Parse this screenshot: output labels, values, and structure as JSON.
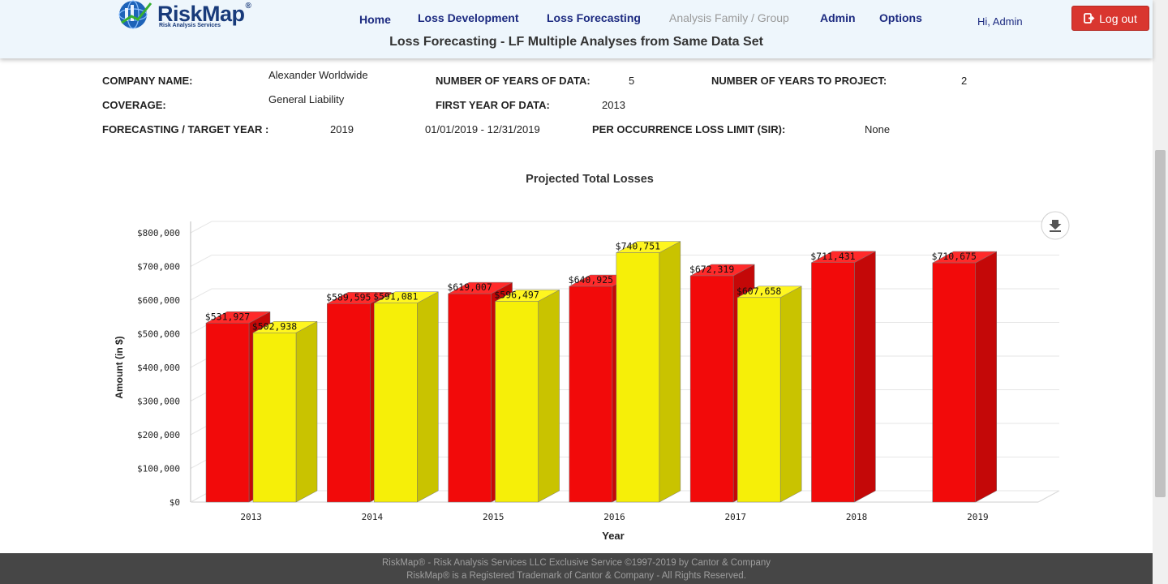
{
  "header": {
    "logo_text": "RiskMap",
    "logo_reg": "®",
    "logo_tagline": "Risk Analysis Services",
    "nav": [
      {
        "label": "Home",
        "active": true
      },
      {
        "label": "Loss Development",
        "active": true
      },
      {
        "label": "Loss Forecasting",
        "active": true
      },
      {
        "label": "Analysis Family / Group",
        "active": false
      },
      {
        "label": "Admin",
        "active": true
      },
      {
        "label": "Options",
        "active": true
      }
    ],
    "greeting": "Hi, Admin",
    "logout_label": "Log out",
    "page_title": "Loss Forecasting - LF Multiple Analyses from Same Data Set"
  },
  "info": {
    "company_label": "COMPANY NAME:",
    "company_value": "Alexander Worldwide",
    "coverage_label": "COVERAGE:",
    "coverage_value": "General Liability",
    "forecast_label": "FORECASTING / TARGET YEAR :",
    "forecast_value": "2019",
    "forecast_range": "01/01/2019 - 12/31/2019",
    "years_data_label": "NUMBER OF YEARS OF DATA:",
    "years_data_value": "5",
    "first_year_label": "FIRST YEAR OF DATA:",
    "first_year_value": "2013",
    "sir_label": "PER OCCURRENCE LOSS LIMIT (SIR):",
    "sir_value": "None",
    "years_project_label": "NUMBER OF YEARS TO PROJECT:",
    "years_project_value": "2"
  },
  "chart_data": {
    "type": "bar",
    "title": "Projected Total Losses",
    "xlabel": "Year",
    "ylabel": "Amount (in $)",
    "categories": [
      "2013",
      "2014",
      "2015",
      "2016",
      "2017",
      "2018",
      "2019"
    ],
    "ylim": [
      0,
      800000
    ],
    "yticks": [
      0,
      100000,
      200000,
      300000,
      400000,
      500000,
      600000,
      700000,
      800000
    ],
    "ytick_labels": [
      "$0",
      "$100,000",
      "$200,000",
      "$300,000",
      "$400,000",
      "$500,000",
      "$600,000",
      "$700,000",
      "$800,000"
    ],
    "grid": true,
    "three_d": true,
    "series": [
      {
        "color": "#f20a0a",
        "side": "#c40808",
        "top": "#ff2a2a",
        "values": [
          531927,
          589595,
          619007,
          640925,
          672319,
          711431,
          710675
        ],
        "labels": [
          "$531,927",
          "$589,595",
          "$619,007",
          "$640,925",
          "$672,319",
          "$711,431",
          "$710,675"
        ]
      },
      {
        "color": "#f6ef08",
        "side": "#c9c300",
        "top": "#fff620",
        "values": [
          502938,
          591081,
          596497,
          740751,
          607658,
          null,
          null
        ],
        "labels": [
          "$502,938",
          "$591,081",
          "$596,497",
          "$740,751",
          "$607,658",
          null,
          null
        ]
      }
    ]
  },
  "chart_menu_icon": "download-icon",
  "footer": {
    "line1": "RiskMap® - Risk Analysis Services LLC Exclusive Service ©1997-2019 by Cantor & Company",
    "line2": "RiskMap® is a Registered Trademark of Cantor & Company - All Rights Reserved."
  }
}
